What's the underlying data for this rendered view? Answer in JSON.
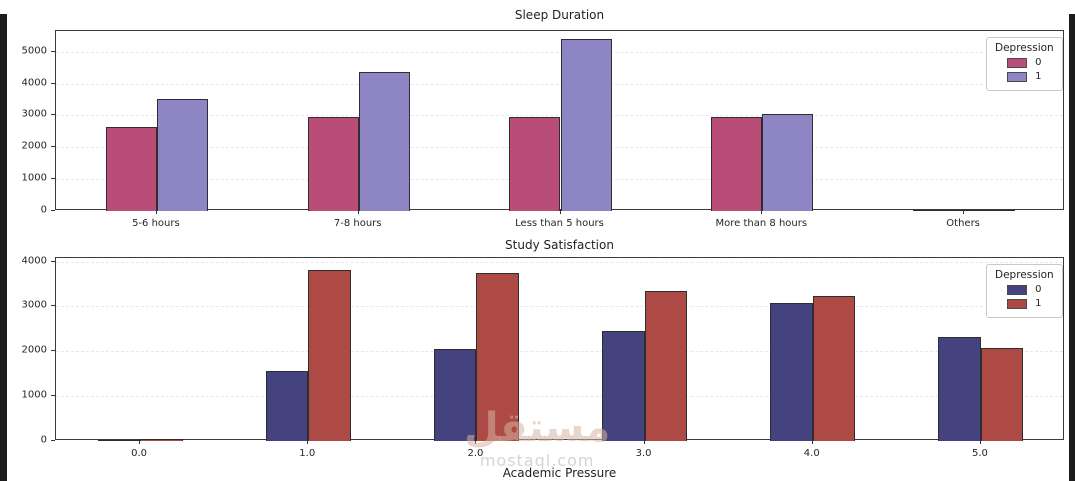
{
  "page": {
    "background": "#ffffff",
    "edge_strip_color": "#1c1c1c"
  },
  "watermark": {
    "logo_text": "مستقل",
    "domain": "mostaql.com"
  },
  "chart_data": [
    {
      "type": "bar",
      "title": "Sleep Duration",
      "xlabel": "",
      "ylabel": "",
      "categories": [
        "5-6 hours",
        "7-8 hours",
        "Less than 5 hours",
        "More than 8 hours",
        "Others"
      ],
      "series": [
        {
          "name": "0",
          "color": "#b94d78",
          "values": [
            2650,
            2950,
            2950,
            2950,
            15
          ]
        },
        {
          "name": "1",
          "color": "#8d85c4",
          "values": [
            3500,
            4350,
            5400,
            3050,
            15
          ]
        }
      ],
      "legend_title": "Depression",
      "legend_position": "upper right",
      "ylim": [
        0,
        5650
      ],
      "yticks": [
        0,
        1000,
        2000,
        3000,
        4000,
        5000
      ],
      "grid": "horizontal-dashed"
    },
    {
      "type": "bar",
      "title": "Study Satisfaction",
      "xlabel": "Academic Pressure",
      "ylabel": "",
      "categories": [
        "0.0",
        "1.0",
        "2.0",
        "3.0",
        "4.0",
        "5.0"
      ],
      "series": [
        {
          "name": "0",
          "color": "#45437f",
          "values": [
            10,
            1570,
            2060,
            2460,
            3080,
            2320
          ]
        },
        {
          "name": "1",
          "color": "#ae4a45",
          "values": [
            40,
            3820,
            3740,
            3340,
            3230,
            2080
          ]
        }
      ],
      "legend_title": "Depression",
      "legend_position": "upper right",
      "ylim": [
        0,
        4080
      ],
      "yticks": [
        0,
        1000,
        2000,
        3000,
        4000
      ],
      "grid": "horizontal-dashed"
    }
  ]
}
